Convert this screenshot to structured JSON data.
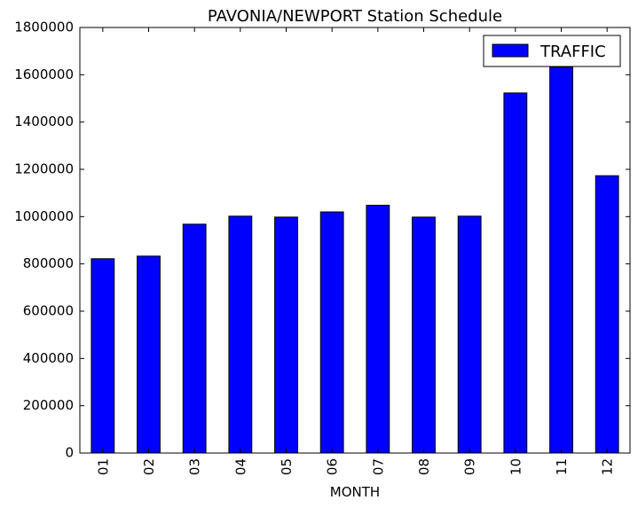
{
  "chart_data": {
    "type": "bar",
    "title": "PAVONIA/NEWPORT Station Schedule",
    "xlabel": "MONTH",
    "ylabel": "",
    "categories": [
      "01",
      "02",
      "03",
      "04",
      "05",
      "06",
      "07",
      "08",
      "09",
      "10",
      "11",
      "12"
    ],
    "series": [
      {
        "name": "TRAFFIC",
        "color": "#0000ff",
        "values": [
          822000,
          833000,
          968000,
          1002000,
          998000,
          1020000,
          1048000,
          998000,
          1002000,
          1523000,
          1632000,
          1173000
        ]
      }
    ],
    "ylim": [
      0,
      1800000
    ],
    "yticks": [
      0,
      200000,
      400000,
      600000,
      800000,
      1000000,
      1200000,
      1400000,
      1600000,
      1800000
    ],
    "legend_position": "top-right",
    "grid": false
  }
}
